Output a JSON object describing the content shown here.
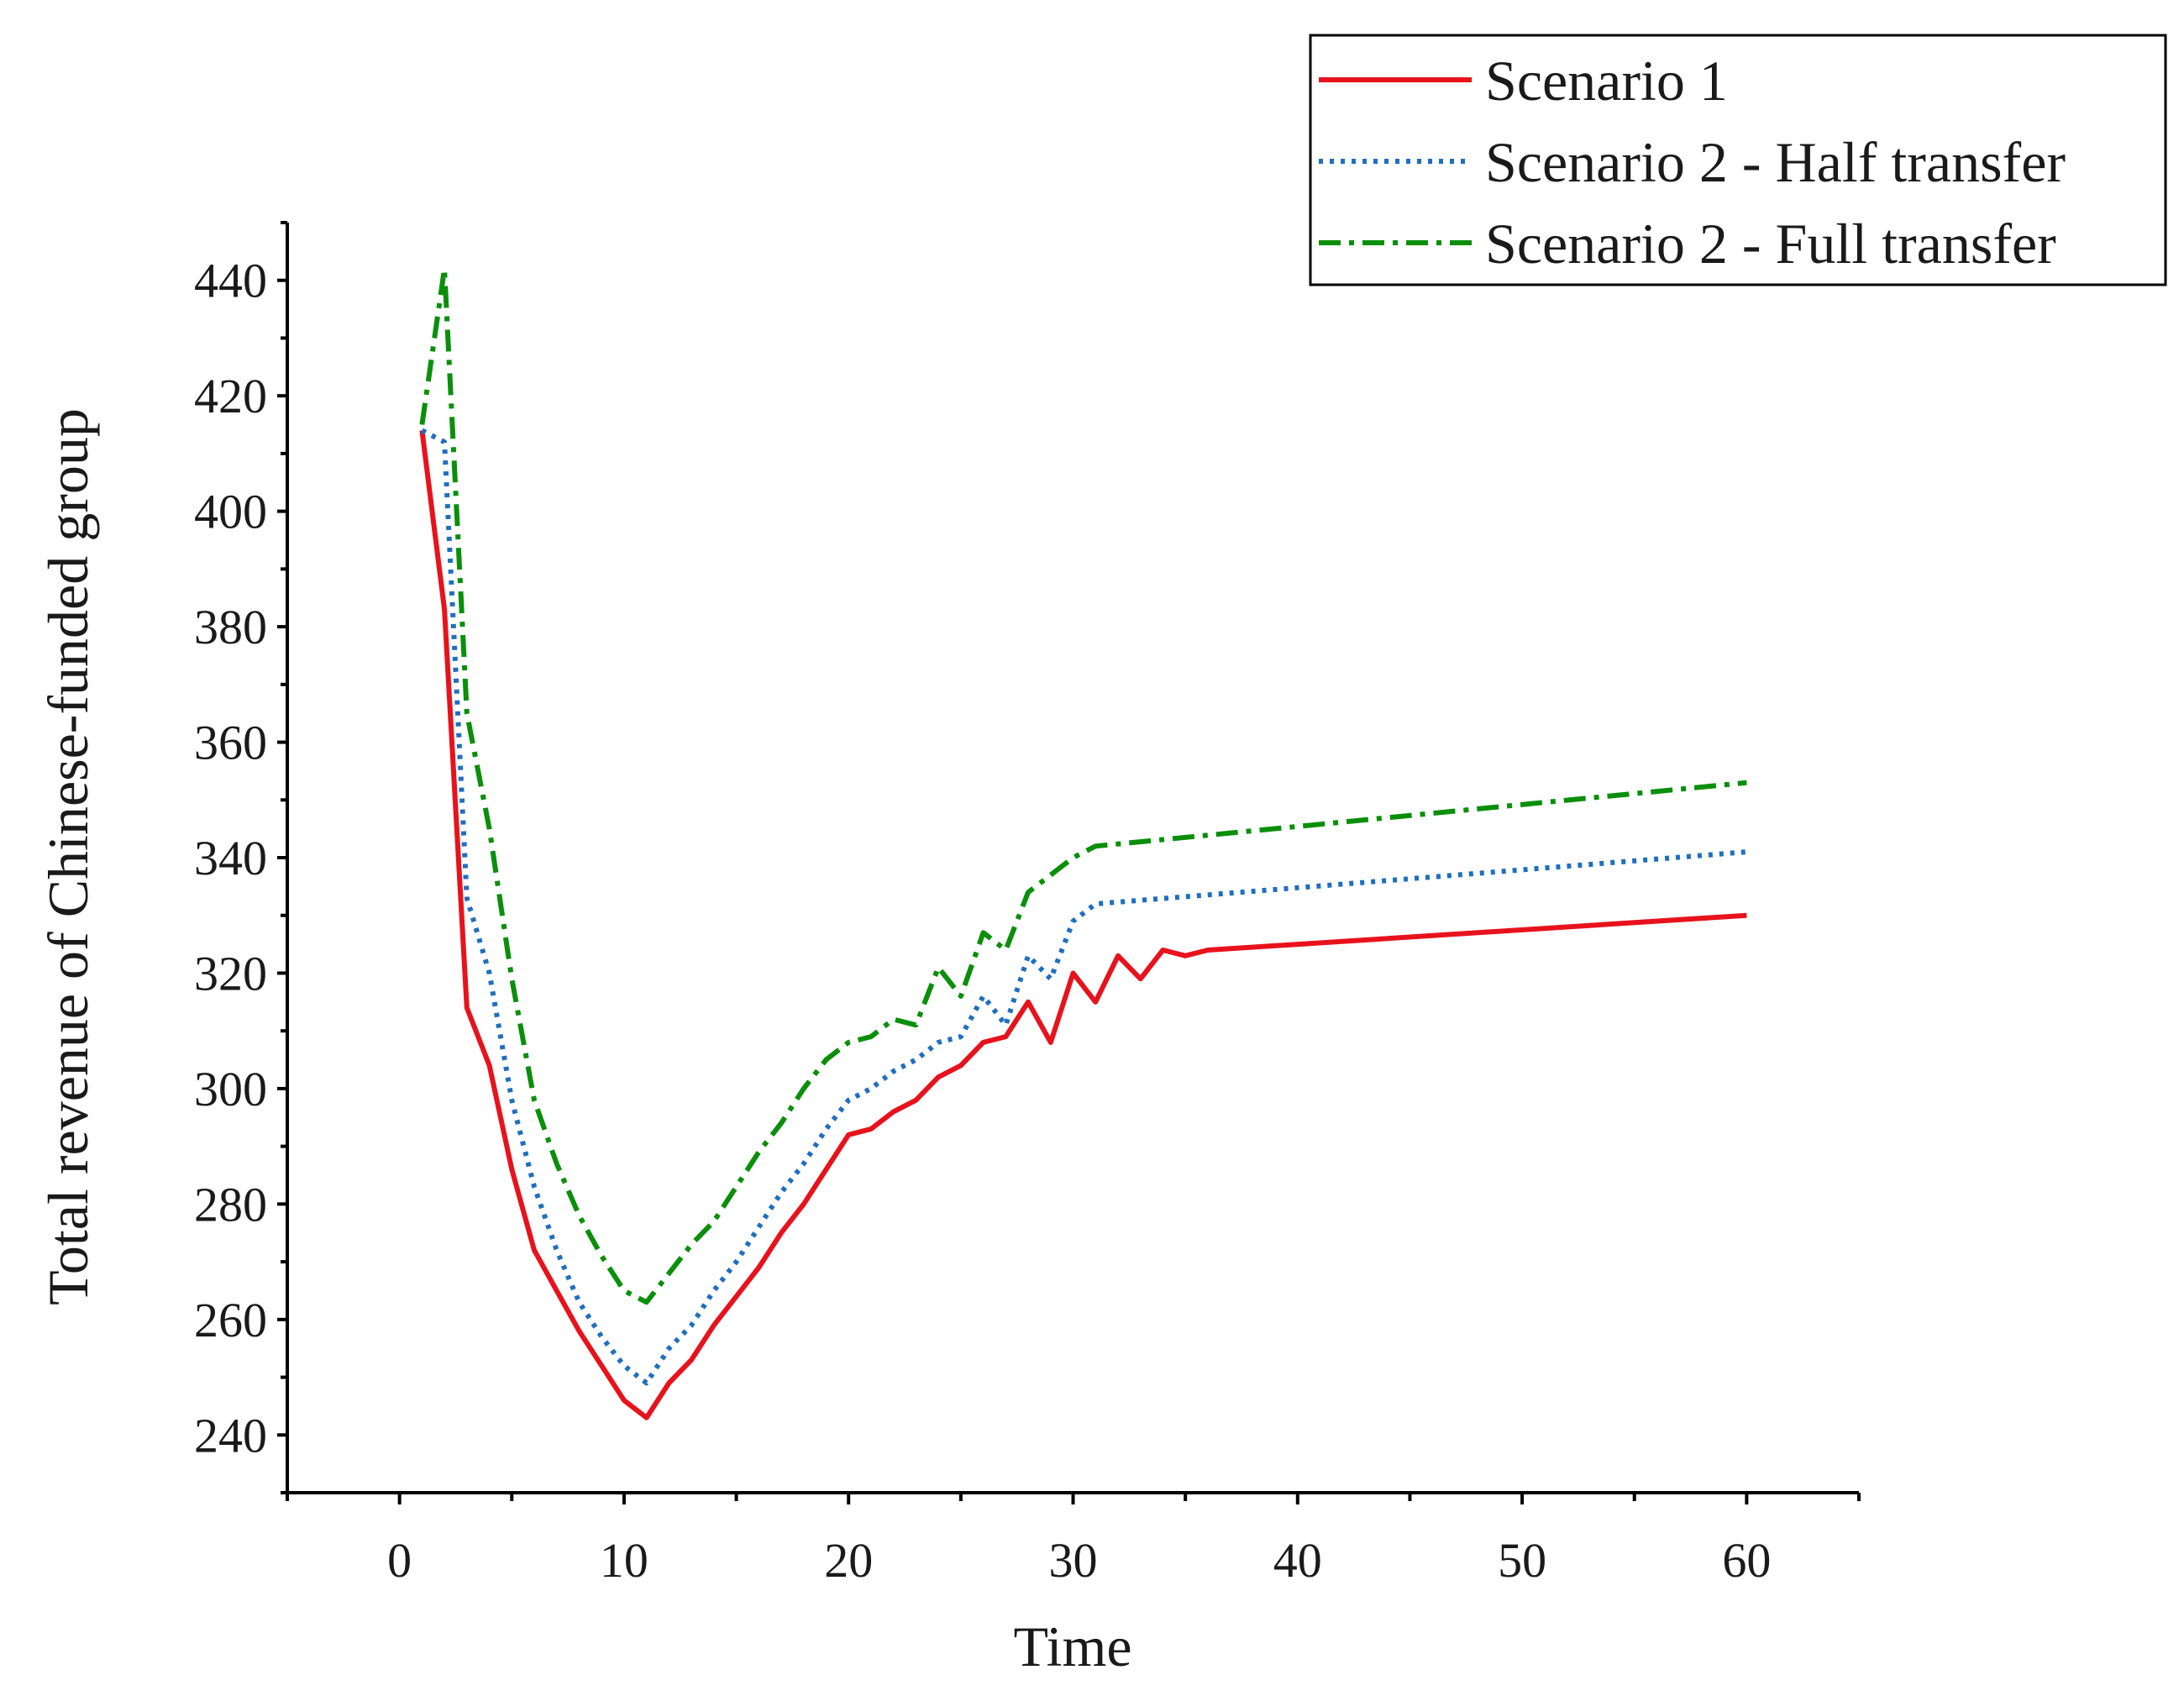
{
  "chart_data": {
    "type": "line",
    "title": "",
    "xlabel": "Time",
    "ylabel": "Total revenue of Chinese-funded group",
    "xlim": [
      -5,
      65
    ],
    "ylim": [
      230,
      450
    ],
    "xticks": [
      0,
      10,
      20,
      30,
      40,
      50,
      60
    ],
    "yticks": [
      240,
      260,
      280,
      300,
      320,
      340,
      360,
      380,
      400,
      420,
      440
    ],
    "grid": false,
    "legend_position": "top-right",
    "series": [
      {
        "name": "Scenario 1",
        "color": "#e8121c",
        "style": "solid",
        "x": [
          1,
          2,
          3,
          4,
          5,
          6,
          7,
          8,
          9,
          10,
          11,
          12,
          13,
          14,
          15,
          16,
          17,
          18,
          19,
          20,
          21,
          22,
          23,
          24,
          25,
          26,
          27,
          28,
          29,
          30,
          31,
          32,
          33,
          34,
          35,
          36,
          60
        ],
        "y": [
          414,
          383,
          314,
          304,
          286,
          272,
          265,
          258,
          252,
          246,
          243,
          249,
          253,
          259,
          264,
          269,
          275,
          280,
          286,
          292,
          293,
          296,
          298,
          302,
          304,
          308,
          309,
          315,
          308,
          320,
          315,
          323,
          319,
          324,
          323,
          324,
          330
        ]
      },
      {
        "name": "Scenario 2 - Half transfer",
        "color": "#1f6fbe",
        "style": "dotted",
        "x": [
          1,
          2,
          3,
          4,
          5,
          6,
          7,
          8,
          9,
          10,
          11,
          12,
          13,
          14,
          15,
          16,
          17,
          18,
          19,
          20,
          21,
          22,
          23,
          24,
          25,
          26,
          27,
          28,
          29,
          30,
          31,
          60
        ],
        "y": [
          414,
          412,
          333,
          320,
          298,
          283,
          272,
          263,
          257,
          252,
          249,
          255,
          259,
          265,
          270,
          276,
          282,
          287,
          293,
          298,
          300,
          303,
          305,
          308,
          309,
          316,
          311,
          323,
          319,
          329,
          332,
          341
        ]
      },
      {
        "name": "Scenario 2 - Full transfer",
        "color": "#0a8f0a",
        "style": "dashdot",
        "x": [
          1,
          2,
          3,
          4,
          5,
          6,
          7,
          8,
          9,
          10,
          11,
          12,
          13,
          14,
          15,
          16,
          17,
          18,
          19,
          20,
          21,
          22,
          23,
          24,
          25,
          26,
          27,
          28,
          29,
          30,
          31,
          60
        ],
        "y": [
          415,
          442,
          365,
          345,
          319,
          298,
          287,
          278,
          271,
          265,
          263,
          268,
          273,
          277,
          283,
          289,
          294,
          300,
          305,
          308,
          309,
          312,
          311,
          321,
          316,
          327,
          324,
          334,
          337,
          340,
          342,
          353
        ]
      }
    ]
  }
}
